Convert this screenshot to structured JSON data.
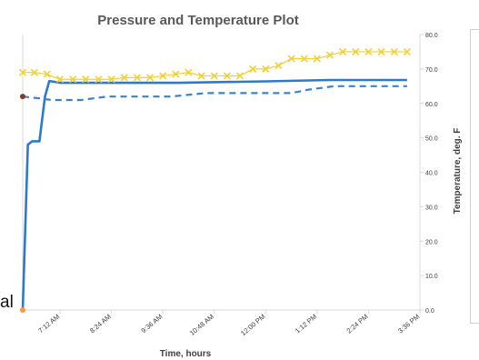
{
  "page": {
    "left_fragment_text": "al"
  },
  "chart_data": {
    "type": "line",
    "title": "Pressure and Temperature Plot",
    "xlabel": "Time, hours",
    "y2label": "Temperature, deg. F",
    "y2lim": [
      0,
      80
    ],
    "y2ticks": [
      "0.0",
      "10.0",
      "20.0",
      "30.0",
      "40.0",
      "50.0",
      "60.0",
      "70.0",
      "80.0"
    ],
    "xlim_hours": [
      6.33,
      15.6
    ],
    "xticks": [
      "7:12 AM",
      "8:24 AM",
      "9:36 AM",
      "10:48 AM",
      "12:00 PM",
      "1:12 PM",
      "2:24 PM",
      "3:36 PM"
    ],
    "grid": false,
    "series": [
      {
        "id": "solid_blue",
        "style": "solid",
        "color": "#2f79c9",
        "x_hours": [
          6.33,
          6.45,
          6.55,
          6.72,
          6.85,
          6.95,
          7.2,
          8.5,
          10.0,
          12.0,
          13.5,
          15.3
        ],
        "values": [
          0,
          48,
          49,
          49,
          62,
          66.5,
          66,
          66,
          66,
          66.4,
          66.8,
          66.8
        ]
      },
      {
        "id": "dashed_blue",
        "style": "dashed",
        "color": "#3a82cc",
        "x_hours": [
          6.33,
          6.7,
          7.0,
          7.7,
          8.3,
          9.8,
          10.6,
          12.6,
          13.0,
          13.6,
          15.3
        ],
        "values": [
          62,
          61.5,
          61,
          61,
          62,
          62,
          63,
          63,
          64,
          65,
          65
        ]
      },
      {
        "id": "yellow_markers",
        "style": "marker",
        "color": "#f2d033",
        "x_hours": [
          6.33,
          6.6,
          6.9,
          7.2,
          7.5,
          7.8,
          8.1,
          8.4,
          8.7,
          9.0,
          9.3,
          9.6,
          9.9,
          10.2,
          10.5,
          10.8,
          11.1,
          11.4,
          11.7,
          12.0,
          12.3,
          12.6,
          12.9,
          13.2,
          13.5,
          13.8,
          14.1,
          14.4,
          14.7,
          15.0,
          15.3
        ],
        "values": [
          69,
          69,
          68.5,
          67,
          67,
          67,
          67,
          67,
          67.5,
          67.5,
          67.5,
          68,
          68.5,
          69,
          68,
          68,
          68,
          68,
          70,
          70,
          71,
          73,
          73,
          73,
          74,
          75,
          75,
          75,
          75,
          75,
          75
        ]
      }
    ],
    "colors": {
      "axis": "#d9d9d9",
      "text": "#404040",
      "title": "#595959",
      "start_marker_orange": "#f39c3c",
      "start_marker_dark": "#7f3d26"
    }
  }
}
